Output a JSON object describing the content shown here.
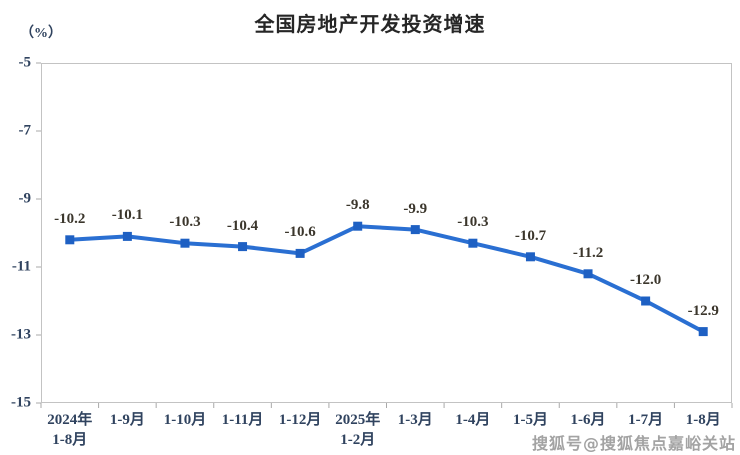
{
  "header": {
    "title": "全国房地产开发投资增速",
    "unit_label": "（%）"
  },
  "chart_data": {
    "type": "line",
    "title": "全国房地产开发投资增速",
    "ylabel": "（%）",
    "categories": [
      "2024年\n1-8月",
      "1-9月",
      "1-10月",
      "1-11月",
      "1-12月",
      "2025年\n1-2月",
      "1-3月",
      "1-4月",
      "1-5月",
      "1-6月",
      "1-7月",
      "1-8月"
    ],
    "values": [
      -10.2,
      -10.1,
      -10.3,
      -10.4,
      -10.6,
      -9.8,
      -9.9,
      -10.3,
      -10.7,
      -11.2,
      -12.0,
      -12.9
    ],
    "data_labels": [
      "-10.2",
      "-10.1",
      "-10.3",
      "-10.4",
      "-10.6",
      "-9.8",
      "-9.9",
      "-10.3",
      "-10.7",
      "-11.2",
      "-12.0",
      "-12.9"
    ],
    "ylim": [
      -15,
      -5
    ],
    "yticks": [
      -5,
      -7,
      -9,
      -11,
      -13,
      -15
    ],
    "grid": false,
    "legend": "none",
    "line_color": "#2a6fd2",
    "marker_color": "#1e60c3",
    "axis_color": "#c3c3c3",
    "tick_color": "#a9a9a9",
    "tick_label_color": "#30435f",
    "data_label_color": "#3b362c"
  },
  "watermark": {
    "text": "搜狐号@搜狐焦点嘉峪关站"
  }
}
